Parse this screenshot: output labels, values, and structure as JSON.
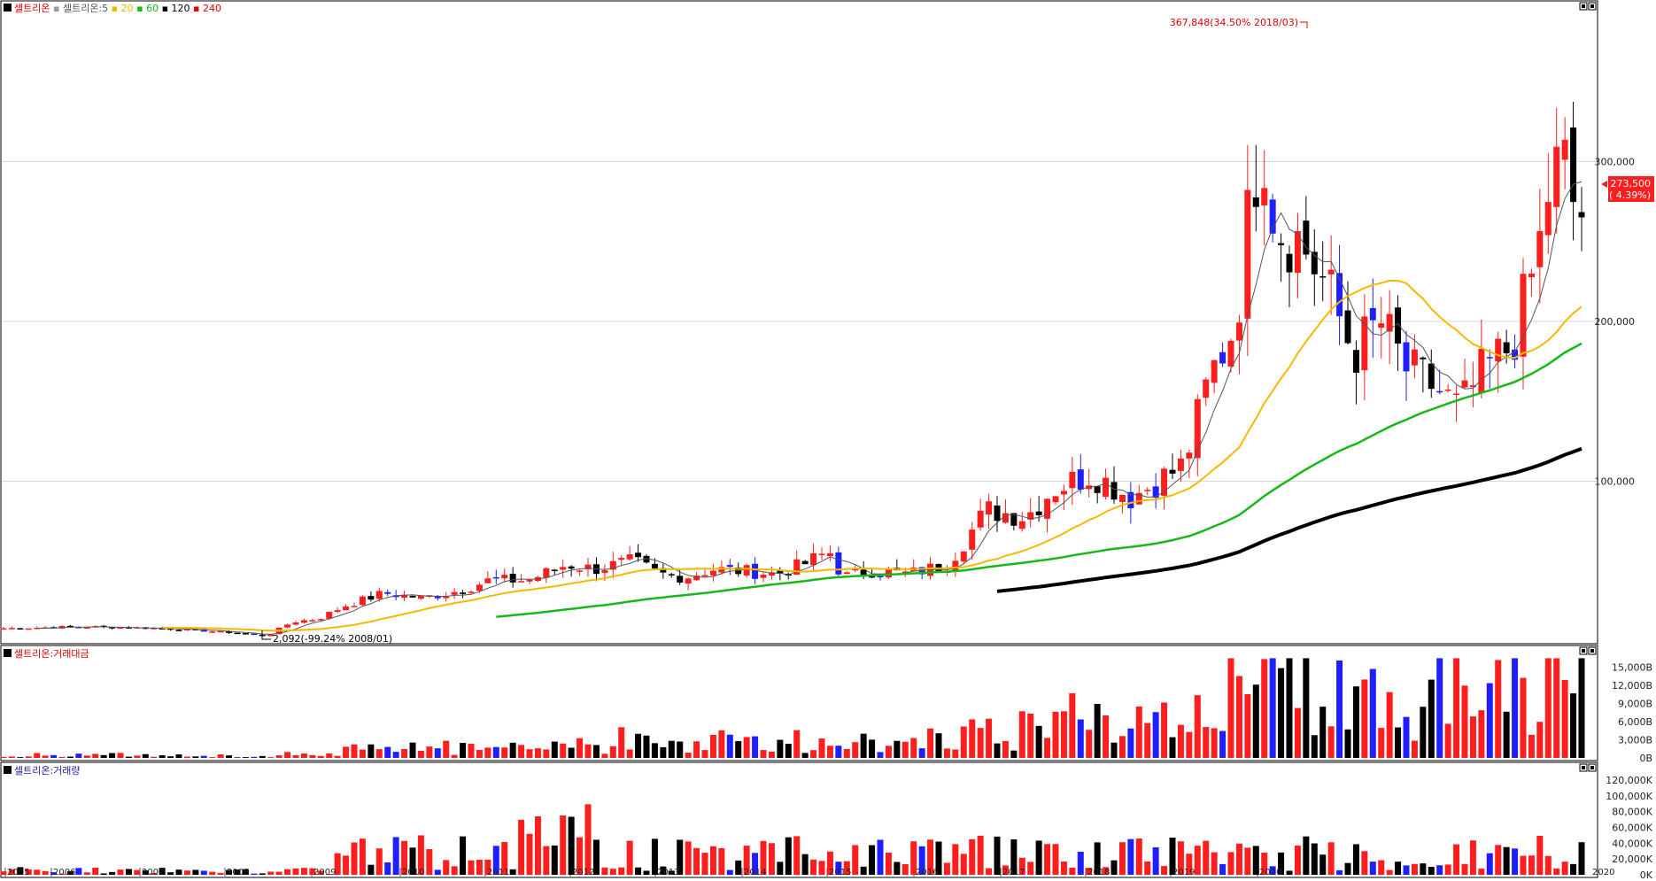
{
  "legend": {
    "price_title": "셀트리온",
    "ma_label_prefix": "셀트리온:5",
    "ma_periods": [
      "20",
      "60",
      "120",
      "240"
    ],
    "value_title": "셀트리온:거래대금",
    "volume_title": "셀트리온:거래량"
  },
  "annotations": {
    "high": "367,848(34.50% 2018/03)",
    "low": "2,092(-99.24% 2008/01)",
    "last_price": "273,500",
    "last_change": "( 4.39%)"
  },
  "colors": {
    "up": "#ff1e1e",
    "down": "#000000",
    "down_alt": "#1e1eff",
    "ma5": "#555555",
    "ma20": "#f5b800",
    "ma60": "#18b818",
    "ma120": "#000000",
    "ma240": "#ff1e1e",
    "grid": "#d8d8d8"
  },
  "chart_data": [
    {
      "type": "candlestick",
      "title": "셀트리온",
      "period": "monthly",
      "x": [
        "2005",
        "2006",
        "2007",
        "2008",
        "2009",
        "2010",
        "2011",
        "2012",
        "2013",
        "2014",
        "2015",
        "2016",
        "2017",
        "2018",
        "2019",
        "2020"
      ],
      "y_ticks": [
        "100,000",
        "200,000",
        "300,000"
      ],
      "ylim": [
        0,
        390000
      ],
      "approx_yearly_close": [
        {
          "x": "2005",
          "y": 10000
        },
        {
          "x": "2006",
          "y": 10000
        },
        {
          "x": "2007",
          "y": 9000
        },
        {
          "x": "2008",
          "y": 20000
        },
        {
          "x": "2009",
          "y": 35000
        },
        {
          "x": "2010",
          "y": 40000
        },
        {
          "x": "2011",
          "y": 40000
        },
        {
          "x": "2012",
          "y": 44000
        },
        {
          "x": "2013",
          "y": 42000
        },
        {
          "x": "2014",
          "y": 42000
        },
        {
          "x": "2015",
          "y": 75000
        },
        {
          "x": "2016",
          "y": 90000
        },
        {
          "x": "2017",
          "y": 220000
        },
        {
          "x": "2018",
          "y": 190000
        },
        {
          "x": "2019",
          "y": 180000
        },
        {
          "x": "2020",
          "y": 273500
        }
      ],
      "high": {
        "value": 367848,
        "date": "2018/03"
      },
      "low": {
        "value": 2092,
        "date": "2008/01"
      },
      "last": {
        "value": 273500,
        "change_pct": 4.39
      },
      "moving_averages": [
        "5",
        "20",
        "60",
        "120",
        "240"
      ]
    },
    {
      "type": "bar",
      "title": "셀트리온:거래대금",
      "y_ticks": [
        "0B",
        "3,000B",
        "6,000B",
        "9,000B",
        "12,000B",
        "15,000B"
      ],
      "ylim": [
        0,
        17000
      ]
    },
    {
      "type": "bar",
      "title": "셀트리온:거래량",
      "y_ticks": [
        "0K",
        "20,000K",
        "40,000K",
        "60,000K",
        "80,000K",
        "100,000K",
        "120,000K"
      ],
      "ylim": [
        0,
        130000
      ]
    }
  ]
}
